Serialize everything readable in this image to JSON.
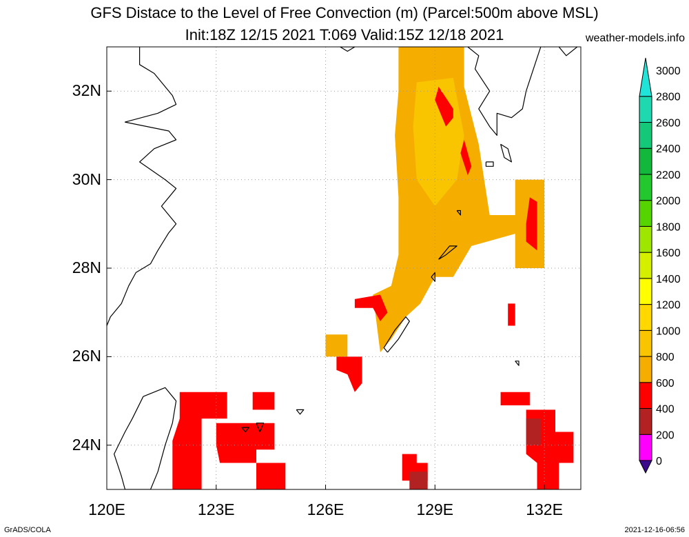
{
  "header": {
    "title_line1": "GFS Distace to the Level of Free Convection (m) (Parcel:500m above MSL)",
    "title_line2": "Init:18Z 12/15 2021 T:069 Valid:15Z 12/18 2021",
    "site": "weather-models.info"
  },
  "map": {
    "lon_range": [
      120,
      133
    ],
    "lat_range": [
      23,
      33
    ],
    "lat_labels": [
      "32N",
      "30N",
      "28N",
      "26N",
      "24N"
    ],
    "lon_labels": [
      "120E",
      "123E",
      "126E",
      "129E",
      "132E"
    ],
    "grid": "dotted",
    "field_regions": [
      {
        "class": "600-800",
        "color": "#f5ad00",
        "lonlat": [
          [
            128.0,
            33.0
          ],
          [
            129.8,
            33.0
          ],
          [
            129.8,
            32.1
          ],
          [
            130.2,
            30.8
          ],
          [
            130.5,
            29.2
          ],
          [
            131.3,
            29.2
          ],
          [
            131.3,
            28.8
          ],
          [
            130.0,
            28.5
          ],
          [
            129.5,
            27.8
          ],
          [
            129.0,
            27.8
          ],
          [
            128.6,
            27.2
          ],
          [
            128.2,
            26.9
          ],
          [
            127.8,
            26.4
          ],
          [
            127.5,
            26.1
          ],
          [
            127.3,
            27.4
          ],
          [
            127.8,
            27.6
          ],
          [
            128.0,
            28.3
          ],
          [
            128.0,
            29.6
          ],
          [
            127.9,
            31.0
          ],
          [
            128.0,
            32.0
          ]
        ]
      },
      {
        "class": "800-1000",
        "color": "#f9c400",
        "lonlat": [
          [
            128.5,
            32.2
          ],
          [
            129.5,
            32.3
          ],
          [
            129.8,
            31.0
          ],
          [
            129.6,
            30.0
          ],
          [
            129.0,
            29.4
          ],
          [
            128.5,
            30.0
          ],
          [
            128.4,
            31.2
          ]
        ]
      },
      {
        "class": "600-800",
        "color": "#f5ad00",
        "lonlat": [
          [
            131.2,
            30.0
          ],
          [
            132.0,
            30.0
          ],
          [
            132.0,
            28.0
          ],
          [
            131.2,
            28.0
          ]
        ]
      },
      {
        "class": "600-800",
        "color": "#f5ad00",
        "lonlat": [
          [
            126.0,
            26.5
          ],
          [
            126.6,
            26.5
          ],
          [
            126.6,
            26.0
          ],
          [
            126.0,
            26.0
          ]
        ]
      },
      {
        "class": "400-600",
        "color": "#ff0000",
        "lonlat": [
          [
            129.1,
            32.1
          ],
          [
            129.5,
            31.6
          ],
          [
            129.5,
            31.4
          ],
          [
            129.3,
            31.2
          ],
          [
            129.0,
            31.8
          ]
        ]
      },
      {
        "class": "400-600",
        "color": "#ff0000",
        "lonlat": [
          [
            129.8,
            30.9
          ],
          [
            130.0,
            30.3
          ],
          [
            129.9,
            30.1
          ],
          [
            129.7,
            30.6
          ]
        ]
      },
      {
        "class": "400-600",
        "color": "#ff0000",
        "lonlat": [
          [
            131.6,
            29.6
          ],
          [
            131.8,
            29.5
          ],
          [
            131.8,
            28.4
          ],
          [
            131.5,
            28.6
          ],
          [
            131.5,
            29.0
          ]
        ]
      },
      {
        "class": "400-600",
        "color": "#ff0000",
        "lonlat": [
          [
            126.8,
            27.3
          ],
          [
            127.5,
            27.4
          ],
          [
            127.7,
            27.0
          ],
          [
            127.5,
            26.8
          ],
          [
            127.3,
            27.1
          ],
          [
            126.8,
            27.1
          ]
        ]
      },
      {
        "class": "400-600",
        "color": "#ff0000",
        "lonlat": [
          [
            126.3,
            26.0
          ],
          [
            127.0,
            26.0
          ],
          [
            127.0,
            25.4
          ],
          [
            126.8,
            25.2
          ],
          [
            126.6,
            25.6
          ],
          [
            126.3,
            25.7
          ]
        ]
      },
      {
        "class": "400-600",
        "color": "#ff0000",
        "lonlat": [
          [
            122.0,
            25.2
          ],
          [
            123.3,
            25.2
          ],
          [
            123.3,
            24.6
          ],
          [
            122.6,
            24.6
          ],
          [
            122.6,
            23.0
          ],
          [
            121.8,
            23.0
          ],
          [
            121.8,
            24.1
          ],
          [
            122.0,
            24.6
          ]
        ]
      },
      {
        "class": "400-600",
        "color": "#ff0000",
        "lonlat": [
          [
            123.0,
            24.5
          ],
          [
            124.6,
            24.5
          ],
          [
            124.6,
            23.9
          ],
          [
            124.1,
            23.9
          ],
          [
            124.1,
            23.6
          ],
          [
            123.1,
            23.6
          ],
          [
            123.0,
            24.0
          ]
        ]
      },
      {
        "class": "400-600",
        "color": "#ff0000",
        "lonlat": [
          [
            124.1,
            23.6
          ],
          [
            124.9,
            23.6
          ],
          [
            124.9,
            23.0
          ],
          [
            124.1,
            23.0
          ]
        ]
      },
      {
        "class": "400-600",
        "color": "#ff0000",
        "lonlat": [
          [
            124.0,
            25.2
          ],
          [
            124.6,
            25.2
          ],
          [
            124.6,
            24.8
          ],
          [
            124.0,
            24.8
          ]
        ]
      },
      {
        "class": "400-600",
        "color": "#ff0000",
        "lonlat": [
          [
            130.8,
            25.2
          ],
          [
            131.6,
            25.2
          ],
          [
            131.6,
            24.9
          ],
          [
            130.8,
            24.9
          ]
        ]
      },
      {
        "class": "400-600",
        "color": "#ff0000",
        "lonlat": [
          [
            131.5,
            24.8
          ],
          [
            132.3,
            24.8
          ],
          [
            132.3,
            24.3
          ],
          [
            132.8,
            24.3
          ],
          [
            132.8,
            23.6
          ],
          [
            132.4,
            23.6
          ],
          [
            132.4,
            23.0
          ],
          [
            131.8,
            23.0
          ],
          [
            131.8,
            23.6
          ],
          [
            131.5,
            23.8
          ]
        ]
      },
      {
        "class": "400-600",
        "color": "#ff0000",
        "lonlat": [
          [
            128.1,
            23.8
          ],
          [
            128.5,
            23.8
          ],
          [
            128.5,
            23.6
          ],
          [
            128.8,
            23.6
          ],
          [
            128.8,
            23.2
          ],
          [
            128.1,
            23.2
          ]
        ]
      },
      {
        "class": "400-600",
        "color": "#ff0000",
        "lonlat": [
          [
            131.0,
            27.2
          ],
          [
            131.2,
            27.2
          ],
          [
            131.2,
            26.7
          ],
          [
            131.0,
            26.7
          ]
        ]
      },
      {
        "class": "200-400",
        "color": "#b22222",
        "lonlat": [
          [
            131.5,
            24.6
          ],
          [
            131.9,
            24.6
          ],
          [
            131.9,
            24.0
          ],
          [
            131.5,
            24.0
          ]
        ]
      },
      {
        "class": "200-400",
        "color": "#b22222",
        "lonlat": [
          [
            128.3,
            23.4
          ],
          [
            128.8,
            23.4
          ],
          [
            128.8,
            23.0
          ],
          [
            128.3,
            23.0
          ]
        ]
      }
    ],
    "coastlines": [
      {
        "name": "china-coast",
        "lonlat": [
          [
            120.9,
            33.0
          ],
          [
            120.9,
            32.6
          ],
          [
            121.3,
            32.4
          ],
          [
            121.8,
            31.9
          ],
          [
            121.9,
            31.7
          ],
          [
            121.4,
            31.5
          ],
          [
            120.5,
            31.3
          ],
          [
            121.7,
            31.1
          ],
          [
            121.9,
            30.9
          ],
          [
            121.3,
            30.7
          ],
          [
            120.9,
            30.4
          ],
          [
            121.6,
            30.0
          ],
          [
            121.9,
            29.8
          ],
          [
            121.5,
            29.4
          ],
          [
            121.9,
            29.0
          ],
          [
            121.7,
            28.8
          ],
          [
            121.4,
            28.4
          ],
          [
            121.2,
            28.1
          ],
          [
            120.8,
            27.9
          ],
          [
            120.6,
            27.6
          ],
          [
            120.4,
            27.2
          ],
          [
            120.1,
            26.9
          ],
          [
            120.0,
            26.7
          ]
        ]
      },
      {
        "name": "taiwan",
        "lonlat": [
          [
            121.0,
            25.1
          ],
          [
            121.6,
            25.3
          ],
          [
            121.9,
            25.0
          ],
          [
            121.8,
            24.5
          ],
          [
            121.6,
            24.0
          ],
          [
            121.4,
            23.4
          ],
          [
            121.2,
            23.0
          ],
          [
            120.5,
            23.0
          ],
          [
            120.4,
            23.3
          ],
          [
            120.2,
            23.8
          ],
          [
            120.5,
            24.3
          ],
          [
            120.7,
            24.6
          ],
          [
            121.0,
            25.1
          ]
        ]
      },
      {
        "name": "kyushu",
        "lonlat": [
          [
            129.9,
            33.0
          ],
          [
            130.2,
            32.8
          ],
          [
            130.1,
            32.5
          ],
          [
            130.5,
            32.0
          ],
          [
            130.2,
            31.6
          ],
          [
            130.5,
            31.2
          ],
          [
            130.7,
            31.0
          ],
          [
            130.7,
            31.5
          ],
          [
            131.1,
            31.4
          ],
          [
            131.4,
            31.6
          ],
          [
            131.5,
            32.0
          ],
          [
            131.7,
            32.5
          ],
          [
            131.9,
            33.0
          ]
        ]
      },
      {
        "name": "shikoku",
        "lonlat": [
          [
            132.4,
            33.0
          ],
          [
            132.6,
            32.8
          ],
          [
            132.9,
            33.0
          ]
        ]
      },
      {
        "name": "okinawa",
        "lonlat": [
          [
            127.7,
            26.1
          ],
          [
            128.0,
            26.4
          ],
          [
            128.3,
            26.8
          ],
          [
            128.2,
            26.9
          ],
          [
            127.9,
            26.6
          ],
          [
            127.6,
            26.2
          ],
          [
            127.7,
            26.1
          ]
        ]
      },
      {
        "name": "amami",
        "lonlat": [
          [
            129.1,
            28.2
          ],
          [
            129.4,
            28.5
          ],
          [
            129.6,
            28.5
          ],
          [
            129.3,
            28.3
          ],
          [
            129.1,
            28.2
          ]
        ]
      },
      {
        "name": "tanegashima",
        "lonlat": [
          [
            130.8,
            30.8
          ],
          [
            131.0,
            30.7
          ],
          [
            131.1,
            30.4
          ],
          [
            130.9,
            30.5
          ],
          [
            130.8,
            30.8
          ]
        ]
      },
      {
        "name": "yakushima",
        "lonlat": [
          [
            130.4,
            30.4
          ],
          [
            130.6,
            30.4
          ],
          [
            130.6,
            30.3
          ],
          [
            130.4,
            30.3
          ],
          [
            130.4,
            30.4
          ]
        ]
      },
      {
        "name": "miyako",
        "lonlat": [
          [
            125.2,
            24.8
          ],
          [
            125.4,
            24.8
          ],
          [
            125.3,
            24.7
          ],
          [
            125.2,
            24.8
          ]
        ]
      },
      {
        "name": "ishigaki",
        "lonlat": [
          [
            124.1,
            24.5
          ],
          [
            124.3,
            24.5
          ],
          [
            124.2,
            24.3
          ],
          [
            124.1,
            24.5
          ]
        ]
      },
      {
        "name": "iriomote",
        "lonlat": [
          [
            123.7,
            24.4
          ],
          [
            123.9,
            24.4
          ],
          [
            123.8,
            24.3
          ],
          [
            123.7,
            24.4
          ]
        ]
      },
      {
        "name": "tokara",
        "lonlat": [
          [
            129.6,
            29.3
          ],
          [
            129.7,
            29.3
          ],
          [
            129.7,
            29.2
          ],
          [
            129.6,
            29.3
          ]
        ]
      },
      {
        "name": "tokunoshima",
        "lonlat": [
          [
            128.9,
            27.8
          ],
          [
            129.0,
            27.9
          ],
          [
            129.0,
            27.7
          ],
          [
            128.9,
            27.8
          ]
        ]
      },
      {
        "name": "cheju",
        "lonlat": [
          [
            126.4,
            33.0
          ],
          [
            126.8,
            33.0
          ],
          [
            126.6,
            32.9
          ],
          [
            126.4,
            33.0
          ]
        ]
      },
      {
        "name": "daito",
        "lonlat": [
          [
            131.2,
            25.9
          ],
          [
            131.3,
            25.9
          ],
          [
            131.3,
            25.8
          ],
          [
            131.2,
            25.9
          ]
        ]
      }
    ]
  },
  "colorbar": {
    "labels": [
      "0",
      "200",
      "400",
      "600",
      "800",
      "1000",
      "1200",
      "1400",
      "1600",
      "1800",
      "2000",
      "2200",
      "2400",
      "2600",
      "2800",
      "3000"
    ],
    "colors": [
      "#3b0a8c",
      "#ff00ff",
      "#b22222",
      "#ff0000",
      "#f5ad00",
      "#f9c400",
      "#ffd800",
      "#ffff00",
      "#d4f000",
      "#9ee600",
      "#55d400",
      "#22c82e",
      "#11b83c",
      "#14c87a",
      "#1ed8b0",
      "#20e4d8"
    ]
  },
  "footer": {
    "left": "GrADS/COLA",
    "right": "2021-12-16-06:56"
  }
}
